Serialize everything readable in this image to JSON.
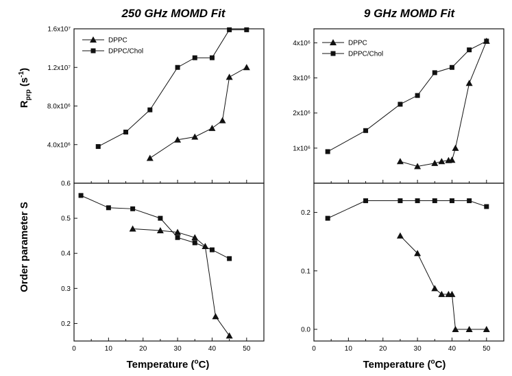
{
  "figure": {
    "titles": [
      "250 GHz MOMD Fit",
      "9 GHz MOMD Fit"
    ],
    "xlabel": "Temperature (°C)",
    "ylabel_top": "Rₚᵣₚ (s⁻¹)",
    "ylabel_bottom": "Order parameter S"
  },
  "chart_data": [
    {
      "type": "line",
      "panel": "top-left",
      "title": "250 GHz MOMD Fit",
      "xlabel": "",
      "ylabel": "Rₚᵣₚ (s⁻¹)",
      "xlim": [
        0,
        55
      ],
      "ylim": [
        0,
        16000000
      ],
      "yticks": [
        4000000,
        8000000,
        12000000,
        16000000
      ],
      "ytick_labels": [
        "4.0x10⁶",
        "8.0x10⁶",
        "1.2x10⁷",
        "1.6x10⁷"
      ],
      "legend": "top-left",
      "series": [
        {
          "name": "DPPC",
          "marker": "triangle",
          "x": [
            22,
            30,
            35,
            40,
            43,
            45,
            50
          ],
          "y": [
            2600000,
            4500000,
            4800000,
            5700000,
            6500000,
            11000000,
            12000000
          ]
        },
        {
          "name": "DPPC/Chol",
          "marker": "square",
          "x": [
            7,
            15,
            22,
            30,
            35,
            40,
            45,
            50
          ],
          "y": [
            3800000,
            5300000,
            7600000,
            12000000,
            13000000,
            13000000,
            15900000,
            15900000
          ]
        }
      ]
    },
    {
      "type": "line",
      "panel": "top-right",
      "title": "9 GHz MOMD Fit",
      "xlabel": "",
      "ylabel": "",
      "xlim": [
        0,
        55
      ],
      "ylim": [
        0,
        4400000
      ],
      "yticks": [
        1000000,
        2000000,
        3000000,
        4000000
      ],
      "ytick_labels": [
        "1x10⁶",
        "2x10⁶",
        "3x10⁶",
        "4x10⁶"
      ],
      "legend": "top-left",
      "series": [
        {
          "name": "DPPC",
          "marker": "triangle",
          "x": [
            25,
            30,
            35,
            37,
            39,
            40,
            41,
            45,
            50
          ],
          "y": [
            620000,
            480000,
            570000,
            620000,
            650000,
            660000,
            1000000,
            2850000,
            4050000
          ]
        },
        {
          "name": "DPPC/Chol",
          "marker": "square",
          "x": [
            4,
            15,
            25,
            30,
            35,
            40,
            45,
            50
          ],
          "y": [
            900000,
            1500000,
            2250000,
            2500000,
            3150000,
            3300000,
            3800000,
            4050000
          ]
        }
      ]
    },
    {
      "type": "line",
      "panel": "bottom-left",
      "title": "",
      "xlabel": "Temperature (°C)",
      "ylabel": "Order parameter S",
      "xlim": [
        0,
        55
      ],
      "ylim": [
        0.15,
        0.6
      ],
      "xticks": [
        0,
        10,
        20,
        30,
        40,
        50
      ],
      "yticks": [
        0.2,
        0.3,
        0.4,
        0.5,
        0.6
      ],
      "ytick_labels": [
        "0.2",
        "0.3",
        "0.4",
        "0.5",
        "0.6"
      ],
      "series": [
        {
          "name": "DPPC",
          "marker": "triangle",
          "x": [
            17,
            25,
            30,
            35,
            38,
            41,
            45
          ],
          "y": [
            0.47,
            0.465,
            0.46,
            0.445,
            0.42,
            0.22,
            0.165
          ]
        },
        {
          "name": "DPPC/Chol",
          "marker": "square",
          "x": [
            2,
            10,
            17,
            25,
            30,
            35,
            40,
            45
          ],
          "y": [
            0.565,
            0.53,
            0.527,
            0.5,
            0.445,
            0.43,
            0.41,
            0.385
          ]
        }
      ]
    },
    {
      "type": "line",
      "panel": "bottom-right",
      "title": "",
      "xlabel": "Temperature (°C)",
      "ylabel": "",
      "xlim": [
        0,
        55
      ],
      "ylim": [
        -0.02,
        0.25
      ],
      "xticks": [
        0,
        10,
        20,
        30,
        40,
        50
      ],
      "yticks": [
        0.0,
        0.1,
        0.2
      ],
      "ytick_labels": [
        "0.0",
        "0.1",
        "0.2"
      ],
      "series": [
        {
          "name": "DPPC",
          "marker": "triangle",
          "x": [
            25,
            30,
            35,
            37,
            39,
            40,
            41,
            45,
            50
          ],
          "y": [
            0.16,
            0.13,
            0.07,
            0.06,
            0.06,
            0.06,
            0.0,
            0.0,
            0.0
          ]
        },
        {
          "name": "DPPC/Chol",
          "marker": "square",
          "x": [
            4,
            15,
            25,
            30,
            35,
            40,
            45,
            50
          ],
          "y": [
            0.19,
            0.22,
            0.22,
            0.22,
            0.22,
            0.22,
            0.22,
            0.21
          ]
        }
      ]
    }
  ]
}
